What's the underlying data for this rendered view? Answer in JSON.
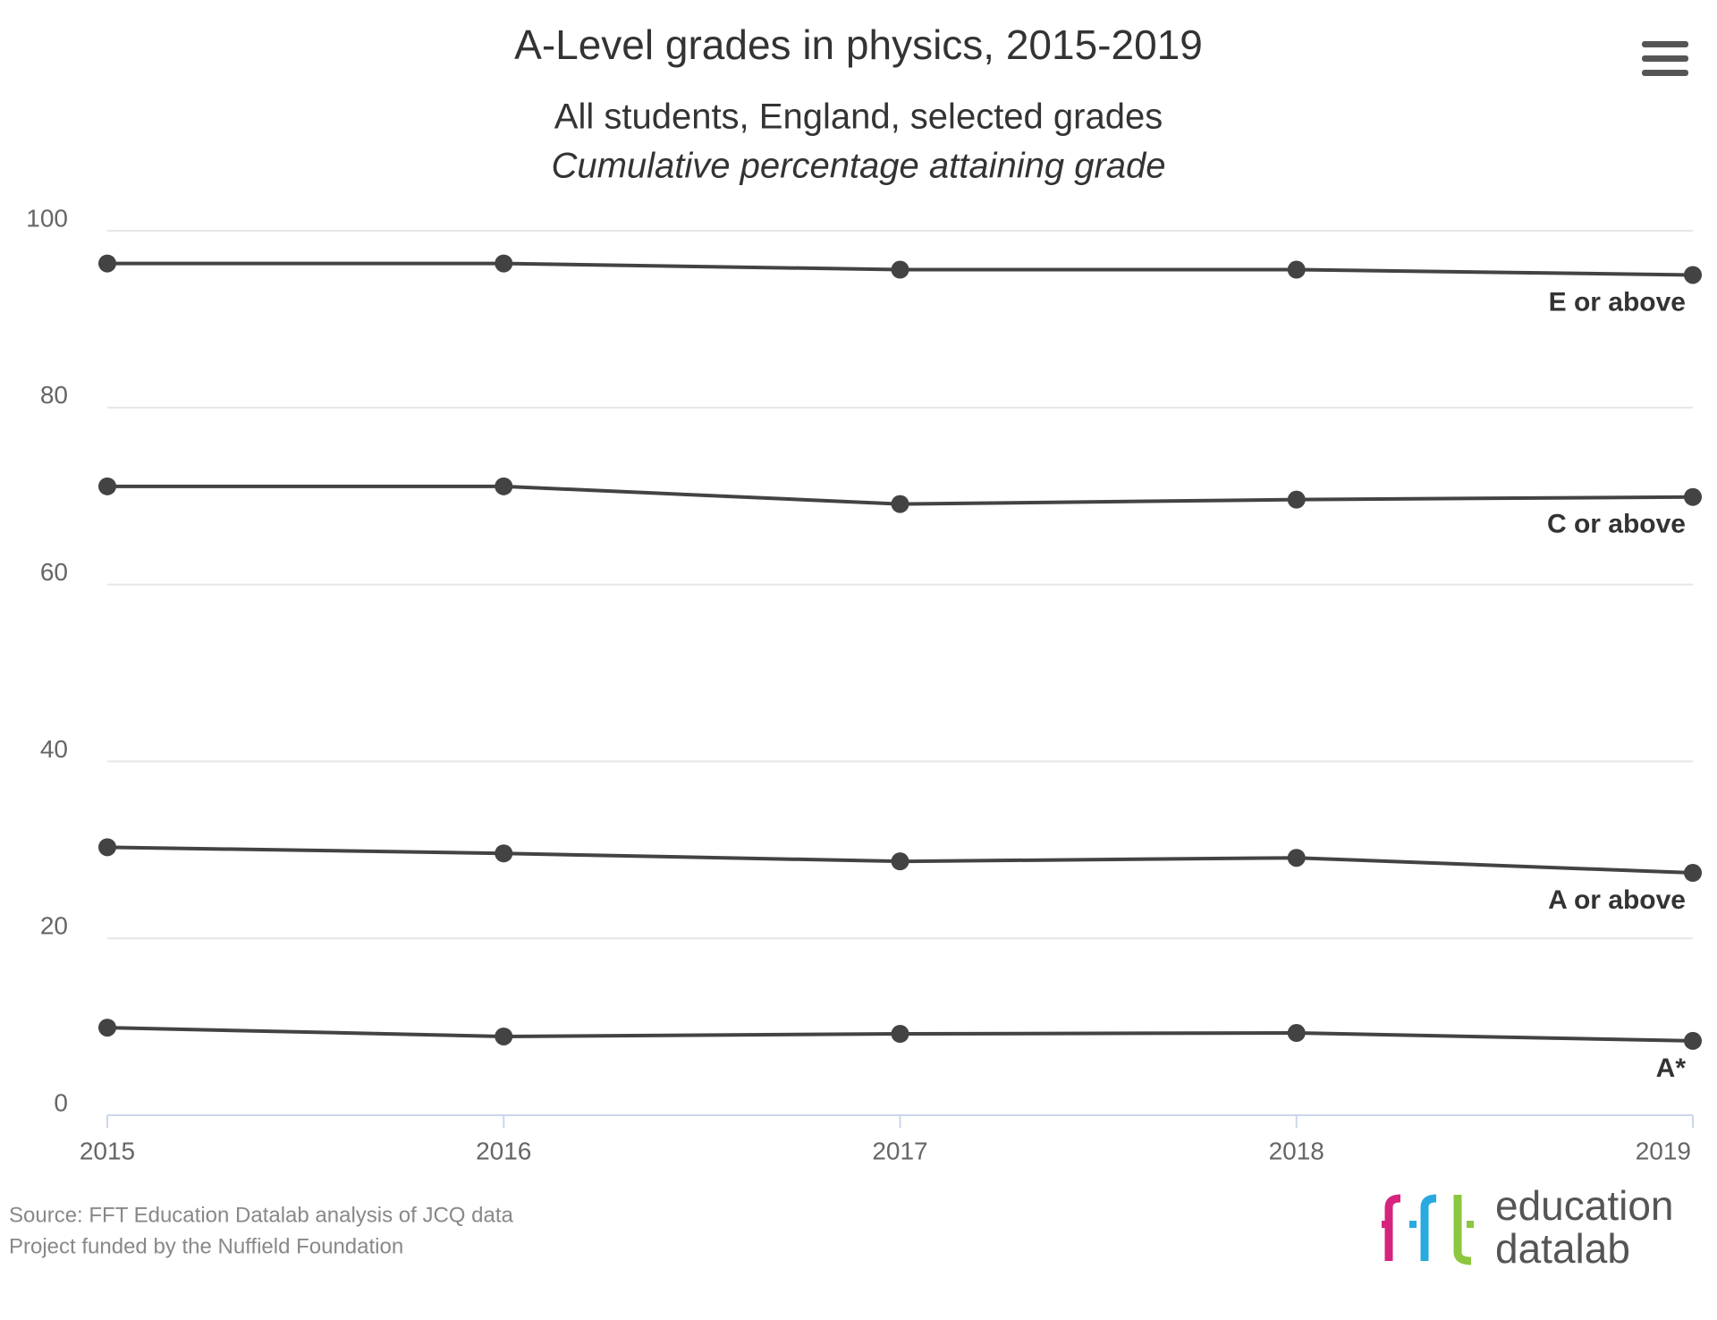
{
  "chart_data": {
    "type": "line",
    "title": "A-Level grades in physics, 2015-2019",
    "subtitle": "All students, England, selected grades",
    "subtitle2": "Cumulative percentage attaining grade",
    "x": [
      2015,
      2016,
      2017,
      2018,
      2019
    ],
    "xlim": [
      2015,
      2019
    ],
    "xticks": [
      2015,
      2016,
      2017,
      2018,
      2019
    ],
    "ylim": [
      0,
      100
    ],
    "yticks": [
      0,
      20,
      40,
      60,
      80,
      100
    ],
    "grid": true,
    "series": [
      {
        "name": "E or above",
        "color": "#434343",
        "values": [
          96.3,
          96.3,
          95.6,
          95.6,
          95.0
        ]
      },
      {
        "name": "C or above",
        "color": "#434343",
        "values": [
          71.1,
          71.1,
          69.1,
          69.6,
          69.9
        ]
      },
      {
        "name": "A or above",
        "color": "#434343",
        "values": [
          30.3,
          29.6,
          28.7,
          29.1,
          27.4
        ]
      },
      {
        "name": "A*",
        "color": "#434343",
        "values": [
          9.9,
          8.9,
          9.2,
          9.3,
          8.4
        ]
      }
    ]
  },
  "source": [
    "Source: FFT Education Datalab analysis of JCQ data",
    "Project funded by the Nuffield Foundation"
  ],
  "logo": {
    "line1": "education",
    "line2": "datalab"
  }
}
